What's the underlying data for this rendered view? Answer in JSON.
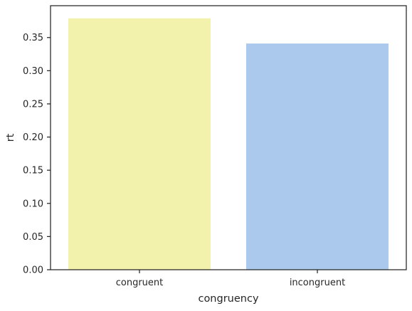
{
  "chart_data": {
    "type": "bar",
    "title": "",
    "xlabel": "congruency",
    "ylabel": "rt",
    "categories": [
      "congruent",
      "incongruent"
    ],
    "values": [
      0.379,
      0.341
    ],
    "colors": [
      "#f3f2ad",
      "#abc9ec"
    ],
    "ylim": [
      0,
      0.398
    ],
    "yticks": [
      0.0,
      0.05,
      0.1,
      0.15,
      0.2,
      0.25,
      0.3,
      0.35
    ],
    "ytick_labels": [
      "0.00",
      "0.05",
      "0.10",
      "0.15",
      "0.20",
      "0.25",
      "0.30",
      "0.35"
    ],
    "grid": false,
    "legend": "none"
  }
}
